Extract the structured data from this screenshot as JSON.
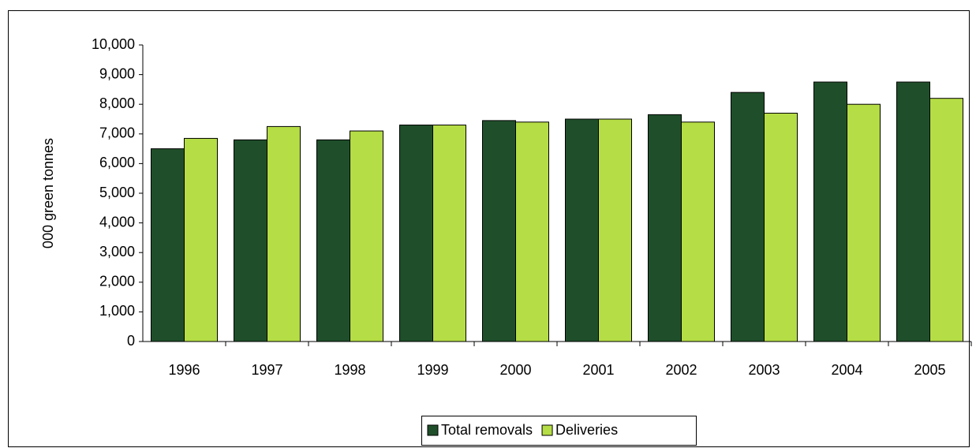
{
  "chart_data": {
    "type": "bar",
    "y_label": "000 green tonnes",
    "categories": [
      "1996",
      "1997",
      "1998",
      "1999",
      "2000",
      "2001",
      "2002",
      "2003",
      "2004",
      "2005"
    ],
    "series": [
      {
        "name": "Total removals",
        "color": "#1f4f2a",
        "values": [
          6500,
          6800,
          6800,
          7300,
          7450,
          7500,
          7650,
          8400,
          8750,
          8750
        ]
      },
      {
        "name": "Deliveries",
        "color": "#b5dd45",
        "values": [
          6850,
          7250,
          7100,
          7300,
          7400,
          7500,
          7400,
          7700,
          8000,
          8200
        ]
      }
    ],
    "ylim": [
      0,
      10000
    ],
    "yticks": [
      0,
      {
        "value": 1000,
        "label": "1,000"
      },
      {
        "value": 2000,
        "label": "2,000"
      },
      {
        "value": 3000,
        "label": "3,000"
      },
      {
        "value": 4000,
        "label": "4,000"
      },
      {
        "value": 5000,
        "label": "5,000"
      },
      {
        "value": 6000,
        "label": "6,000"
      },
      {
        "value": 7000,
        "label": "7,000"
      },
      {
        "value": 8000,
        "label": "8,000"
      },
      {
        "value": 9000,
        "label": "9,000"
      },
      {
        "value": 10000,
        "label": "10,000"
      }
    ],
    "grid": false,
    "legend": "bottom"
  }
}
